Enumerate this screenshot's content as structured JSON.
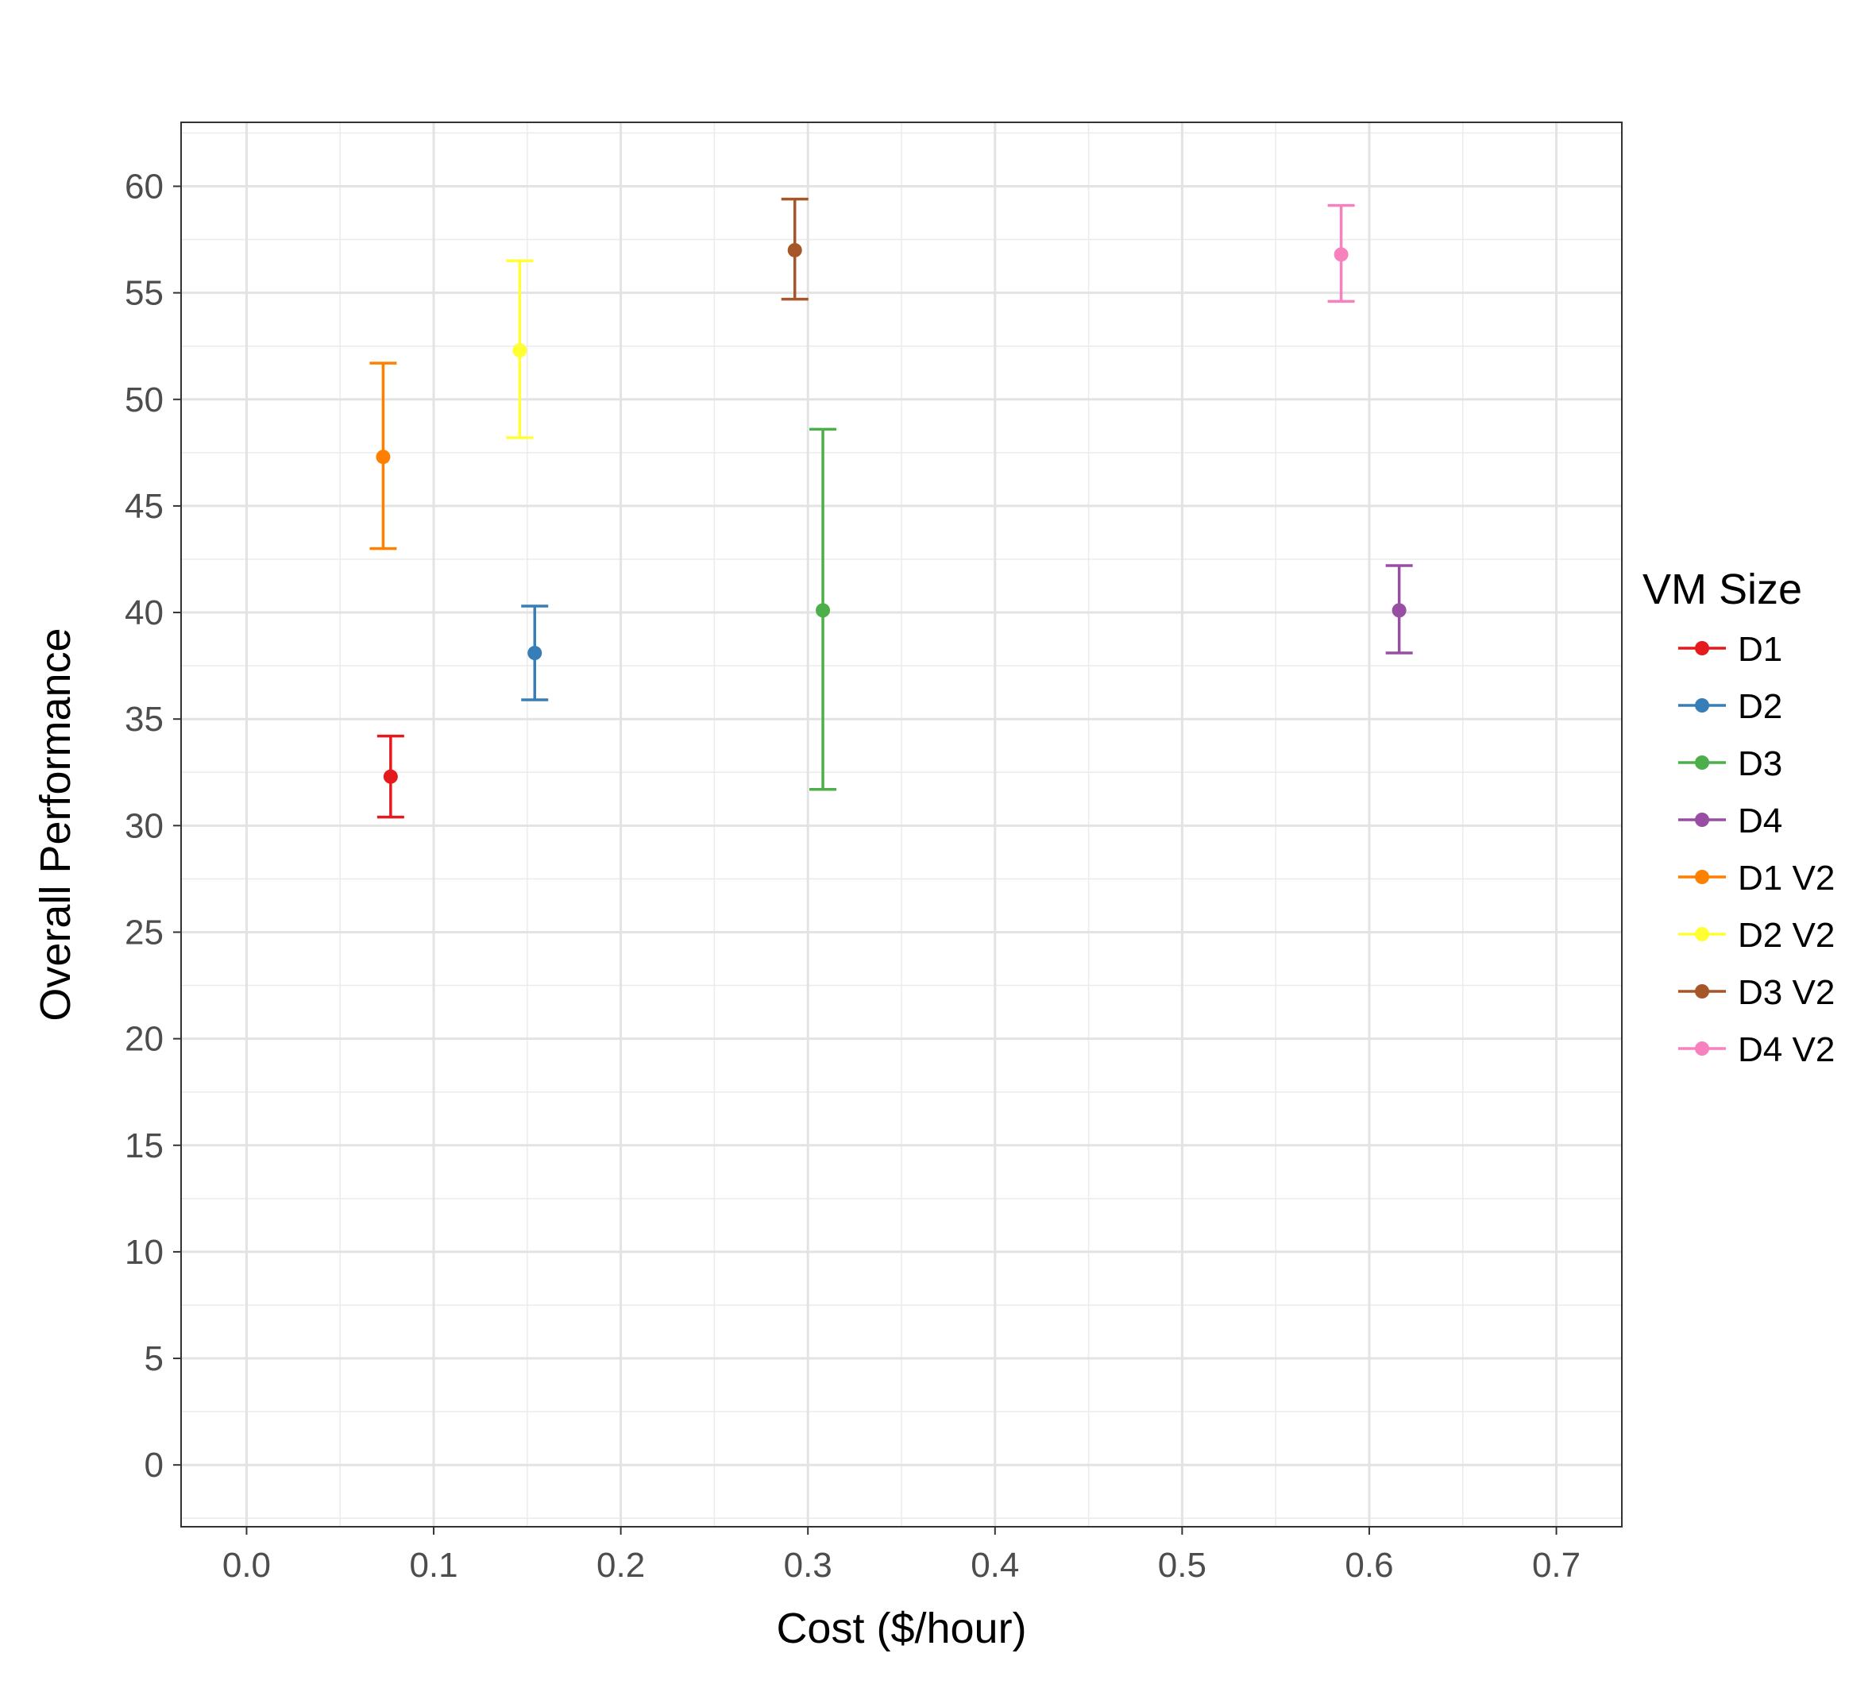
{
  "chart_data": {
    "type": "scatter",
    "xlabel": "Cost ($/hour)",
    "ylabel": "Overall Performance",
    "xlim": [
      -0.035,
      0.735
    ],
    "ylim": [
      -2.9,
      63.0
    ],
    "x_ticks": [
      0.0,
      0.1,
      0.2,
      0.3,
      0.4,
      0.5,
      0.6,
      0.7
    ],
    "x_tick_labels": [
      "0.0",
      "0.1",
      "0.2",
      "0.3",
      "0.4",
      "0.5",
      "0.6",
      "0.7"
    ],
    "y_ticks": [
      0,
      5,
      10,
      15,
      20,
      25,
      30,
      35,
      40,
      45,
      50,
      55,
      60
    ],
    "y_tick_labels": [
      "0",
      "5",
      "10",
      "15",
      "20",
      "25",
      "30",
      "35",
      "40",
      "45",
      "50",
      "55",
      "60"
    ],
    "grid": true,
    "legend": {
      "title": "VM Size",
      "position": "right"
    },
    "series": [
      {
        "name": "D1",
        "color": "#e41a1c",
        "x": 0.077,
        "y": 32.3,
        "ymin": 30.4,
        "ymax": 34.2
      },
      {
        "name": "D2",
        "color": "#377eb8",
        "x": 0.154,
        "y": 38.1,
        "ymin": 35.9,
        "ymax": 40.3
      },
      {
        "name": "D3",
        "color": "#4daf4a",
        "x": 0.308,
        "y": 40.1,
        "ymin": 31.7,
        "ymax": 48.6
      },
      {
        "name": "D4",
        "color": "#984ea3",
        "x": 0.616,
        "y": 40.1,
        "ymin": 38.1,
        "ymax": 42.2
      },
      {
        "name": "D1 V2",
        "color": "#ff7f00",
        "x": 0.073,
        "y": 47.3,
        "ymin": 43.0,
        "ymax": 51.7
      },
      {
        "name": "D2 V2",
        "color": "#ffff33",
        "x": 0.146,
        "y": 52.3,
        "ymin": 48.2,
        "ymax": 56.5
      },
      {
        "name": "D3 V2",
        "color": "#a65628",
        "x": 0.293,
        "y": 57.0,
        "ymin": 54.7,
        "ymax": 59.4
      },
      {
        "name": "D4 V2",
        "color": "#f781bf",
        "x": 0.585,
        "y": 56.8,
        "ymin": 54.6,
        "ymax": 59.1
      }
    ]
  }
}
